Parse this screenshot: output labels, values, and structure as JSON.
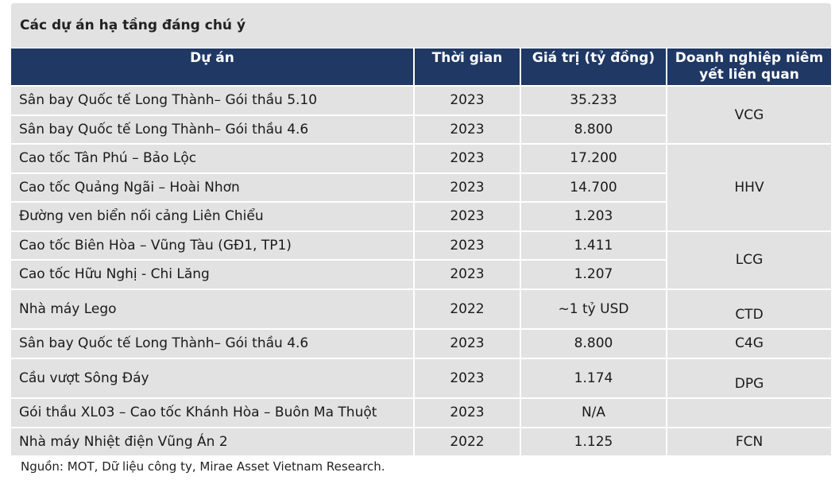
{
  "title": "Các dự án hạ tầng đáng chú ý",
  "headers": [
    "Dự án",
    "Thời gian",
    "Giá trị (tỷ đồng)",
    "Doanh nghiệp niêm yết liên quan"
  ],
  "rows": [
    {
      "project": "Sân bay Quốc tế Long Thành– Gói thầu 5.10",
      "year": "2023",
      "value": "35.233"
    },
    {
      "project": "Sân bay Quốc tế Long Thành– Gói thầu 4.6",
      "year": "2023",
      "value": "8.800"
    },
    {
      "project": "Cao tốc Tân Phú – Bảo Lộc",
      "year": "2023",
      "value": "17.200"
    },
    {
      "project": "Cao tốc Quảng Ngãi – Hoài Nhơn",
      "year": "2023",
      "value": "14.700"
    },
    {
      "project": "Đường ven biển nối cảng Liên Chiểu",
      "year": "2023",
      "value": "1.203"
    },
    {
      "project": "Cao tốc Biên Hòa – Vũng Tàu (GĐ1, TP1)",
      "year": "2023",
      "value": "1.411"
    },
    {
      "project": "Cao tốc Hữu Nghị - Chi Lăng",
      "year": "2023",
      "value": "1.207"
    },
    {
      "project": "Nhà máy Lego",
      "year": "2022",
      "value": "~1 tỷ USD"
    },
    {
      "project": "Sân bay Quốc tế Long Thành– Gói thầu 4.6",
      "year": "2023",
      "value": "8.800"
    },
    {
      "project": "Cầu vượt Sông Đáy",
      "year": "2023",
      "value": "1.174"
    },
    {
      "project": "Gói thầu XL03 – Cao tốc Khánh Hòa – Buôn Ma Thuột",
      "year": "2023",
      "value": "N/A"
    },
    {
      "project": "Nhà máy Nhiệt điện Vũng Án 2",
      "year": "2022",
      "value": "1.125"
    }
  ],
  "companies": {
    "vcg": "VCG",
    "hhv": "HHV",
    "lcg": "LCG",
    "ctd": "CTD",
    "c4g": "C4G",
    "dpg": "DPG",
    "fcn": "FCN"
  },
  "source": "Nguồn: MOT, Dữ liệu công ty, Mirae Asset Vietnam Research."
}
